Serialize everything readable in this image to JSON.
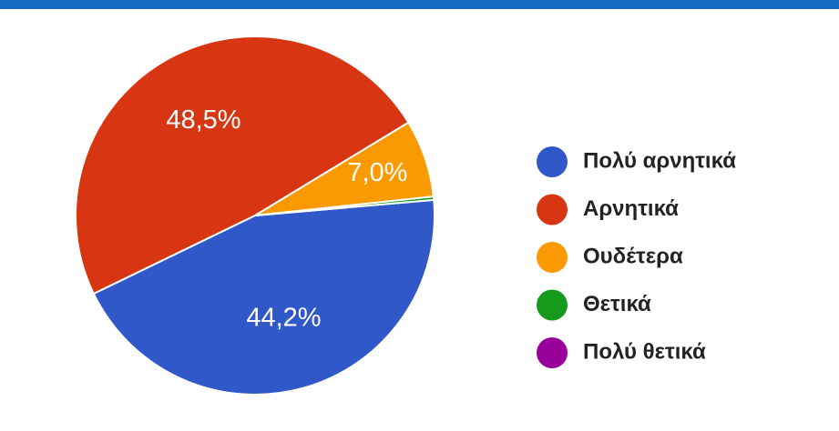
{
  "chart_data": {
    "type": "pie",
    "categories": [
      "Πολύ αρνητικά",
      "Αρνητικά",
      "Ουδέτερα",
      "Θετικά",
      "Πολύ θετικά"
    ],
    "values": [
      44.2,
      48.5,
      7.0,
      0.3,
      0
    ],
    "value_labels": [
      "44,2%",
      "48,5%",
      "7,0%",
      null,
      null
    ],
    "colors": [
      "#3058c8",
      "#d83512",
      "#fb9a00",
      "#159a1c",
      "#990099"
    ],
    "legend": "right"
  }
}
